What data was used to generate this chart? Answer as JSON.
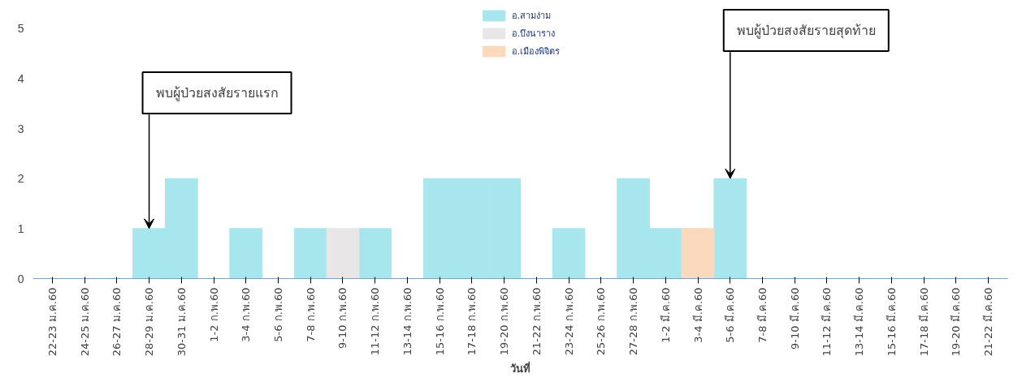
{
  "chart_data": {
    "type": "bar",
    "stacked": true,
    "xlabel": "วันที่",
    "categories": [
      "22-23 ม.ค.60",
      "24-25 ม.ค.60",
      "26-27 ม.ค.60",
      "28-29 ม.ค.60",
      "30-31 ม.ค.60",
      "1-2 ก.พ.60",
      "3-4 ก.พ.60",
      "5-6 ก.พ.60",
      "7-8 ก.พ.60",
      "9-10 ก.พ.60",
      "11-12 ก.พ.60",
      "13-14 ก.พ.60",
      "15-16 ก.พ.60",
      "17-18 ก.พ.60",
      "19-20 ก.พ.60",
      "21-22 ก.พ.60",
      "23-24 ก.พ.60",
      "25-26 ก.พ.60",
      "27-28 ก.พ.60",
      "1-2 มี.ค.60",
      "3-4 มี.ค.60",
      "5-6 มี.ค.60",
      "7-8 มี.ค.60",
      "9-10 มี.ค.60",
      "11-12 มี.ค.60",
      "13-14 มี.ค.60",
      "15-16 มี.ค.60",
      "17-18 มี.ค.60",
      "19-20 มี.ค.60",
      "21-22 มี.ค.60"
    ],
    "series": [
      {
        "name": "อ.สามง่าม",
        "color": "#a8e6ee",
        "values": [
          0,
          0,
          0,
          1,
          2,
          0,
          1,
          0,
          1,
          0,
          1,
          0,
          2,
          2,
          2,
          0,
          1,
          0,
          2,
          1,
          0,
          2,
          0,
          0,
          0,
          0,
          0,
          0,
          0,
          0
        ]
      },
      {
        "name": "อ.บึงนาราง",
        "color": "#e8e6e6",
        "values": [
          0,
          0,
          0,
          0,
          0,
          0,
          0,
          0,
          0,
          1,
          0,
          0,
          0,
          0,
          0,
          0,
          0,
          0,
          0,
          0,
          0,
          0,
          0,
          0,
          0,
          0,
          0,
          0,
          0,
          0
        ]
      },
      {
        "name": "อ.เมืองพิจิตร",
        "color": "#fbd9bd",
        "values": [
          0,
          0,
          0,
          0,
          0,
          0,
          0,
          0,
          0,
          0,
          0,
          0,
          0,
          0,
          0,
          0,
          0,
          0,
          0,
          0,
          1,
          0,
          0,
          0,
          0,
          0,
          0,
          0,
          0,
          0
        ]
      }
    ],
    "ylim": [
      0,
      5.4
    ],
    "yticks": [
      0,
      1,
      2,
      3,
      4,
      5
    ],
    "grid": false,
    "legend": "top",
    "annotations": [
      {
        "text": "พบผู้ป่วยสงสัยรายแรก",
        "x": "28-29 ม.ค.60",
        "y": 1
      },
      {
        "text": "พบผู้ป่วยสงสัยรายสุดท้าย",
        "x": "5-6 มี.ค.60",
        "y": 2
      }
    ]
  }
}
